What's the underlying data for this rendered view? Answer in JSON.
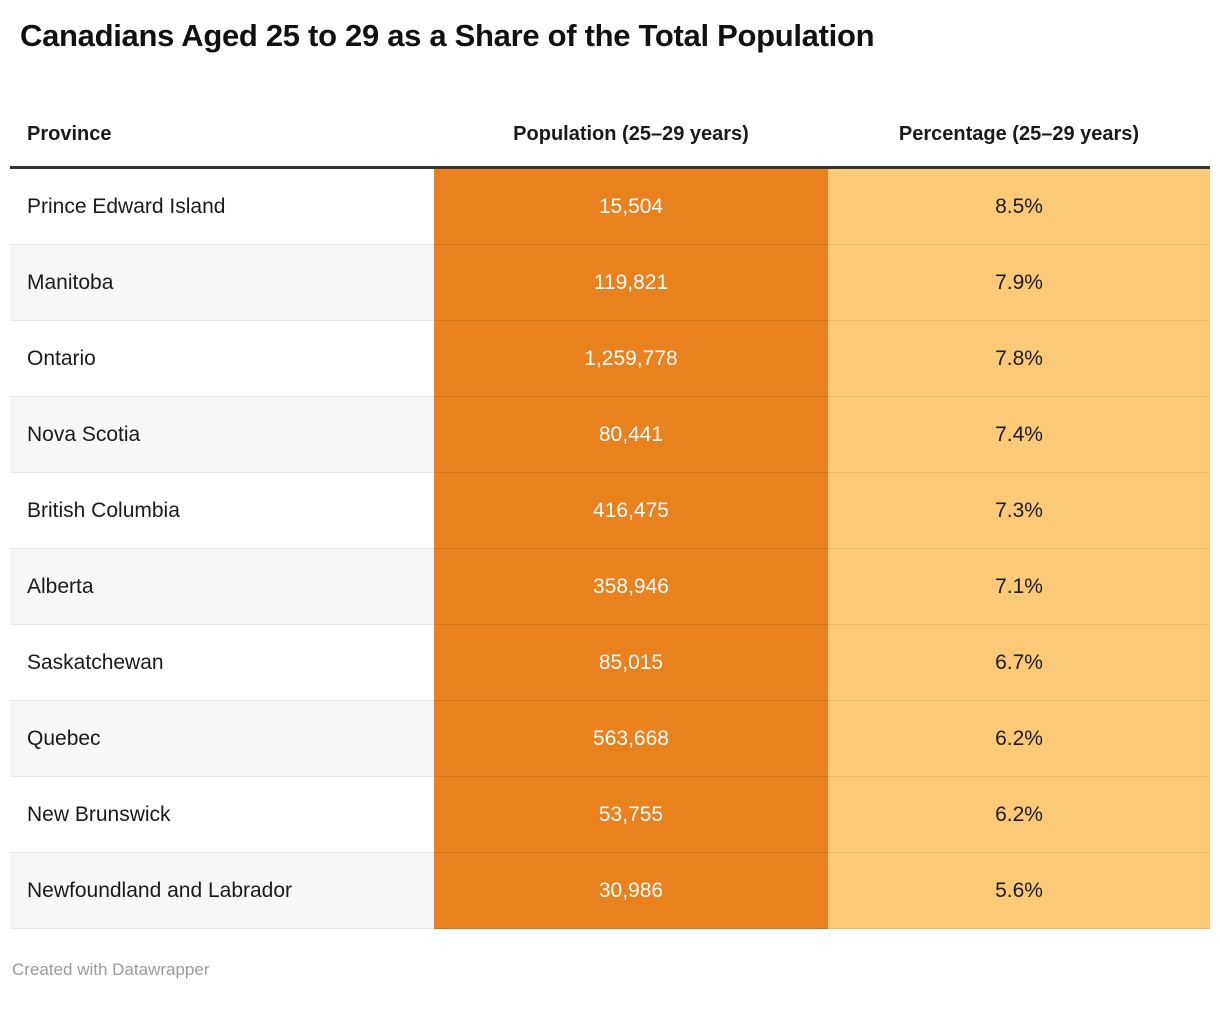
{
  "title": "Canadians Aged 25 to 29 as a Share of the Total Population",
  "table": {
    "headers": {
      "province": "Province",
      "population": "Population (25–29 years)",
      "percentage": "Percentage (25–29 years)"
    },
    "rows": [
      {
        "province": "Prince Edward Island",
        "population": "15,504",
        "percentage": "8.5%"
      },
      {
        "province": "Manitoba",
        "population": "119,821",
        "percentage": "7.9%"
      },
      {
        "province": "Ontario",
        "population": "1,259,778",
        "percentage": "7.8%"
      },
      {
        "province": "Nova Scotia",
        "population": "80,441",
        "percentage": "7.4%"
      },
      {
        "province": "British Columbia",
        "population": "416,475",
        "percentage": "7.3%"
      },
      {
        "province": "Alberta",
        "population": "358,946",
        "percentage": "7.1%"
      },
      {
        "province": "Saskatchewan",
        "population": "85,015",
        "percentage": "6.7%"
      },
      {
        "province": "Quebec",
        "population": "563,668",
        "percentage": "6.2%"
      },
      {
        "province": "New Brunswick",
        "population": "53,755",
        "percentage": "6.2%"
      },
      {
        "province": "Newfoundland and Labrador",
        "population": "30,986",
        "percentage": "5.6%"
      }
    ]
  },
  "footer": {
    "credit": "Created with Datawrapper"
  },
  "colors": {
    "population_column": "#e8811e",
    "percentage_column": "#fcc979",
    "header_rule": "#333333",
    "row_stripe": "#f7f7f7",
    "credit_text": "#9b9b9b"
  },
  "chart_data": {
    "type": "table",
    "title": "Canadians Aged 25 to 29 as a Share of the Total Population",
    "columns": [
      "Province",
      "Population (25–29 years)",
      "Percentage (25–29 years)"
    ],
    "rows": [
      [
        "Prince Edward Island",
        15504,
        8.5
      ],
      [
        "Manitoba",
        119821,
        7.9
      ],
      [
        "Ontario",
        1259778,
        7.8
      ],
      [
        "Nova Scotia",
        80441,
        7.4
      ],
      [
        "British Columbia",
        416475,
        7.3
      ],
      [
        "Alberta",
        358946,
        7.1
      ],
      [
        "Saskatchewan",
        85015,
        6.7
      ],
      [
        "Quebec",
        563668,
        6.2
      ],
      [
        "New Brunswick",
        53755,
        6.2
      ],
      [
        "Newfoundland and Labrador",
        30986,
        5.6
      ]
    ],
    "notes": "Population column shaded dark orange #e8811e; Percentage column shaded light orange #fcc979; percentage values shown with one decimal and % sign"
  }
}
